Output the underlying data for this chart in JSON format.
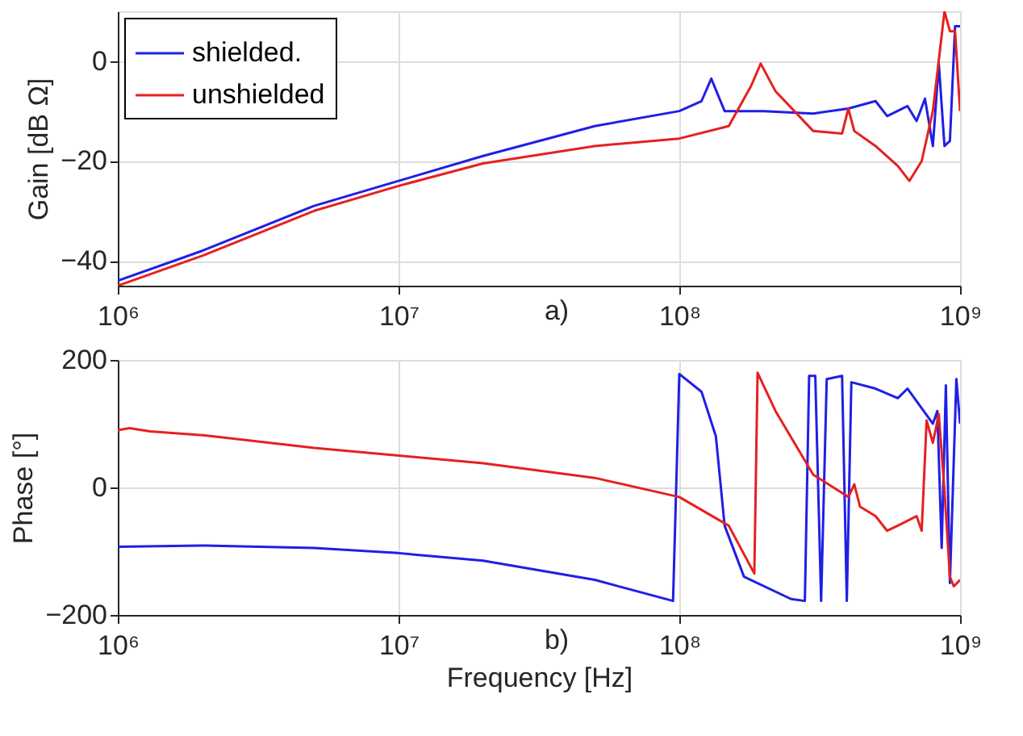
{
  "chart_data": [
    {
      "type": "line",
      "ylabel": "Gain [dB Ω]",
      "annotations": [
        "a)"
      ],
      "log": "x",
      "grid": true,
      "legend": "top left",
      "line_style": "solid",
      "marker": "none",
      "xlim": [
        1000000,
        1000000000
      ],
      "xticks": [
        {
          "value": 1000000,
          "label": "10⁶"
        },
        {
          "value": 10000000,
          "label": "10⁷"
        },
        {
          "value": 100000000,
          "label": "10⁸"
        },
        {
          "value": 1000000000,
          "label": "10⁹"
        }
      ],
      "ylim": [
        -45,
        10
      ],
      "yticks": [
        -40,
        -20,
        0
      ],
      "series": [
        {
          "name": "shielded.",
          "color": "#1f1fe6",
          "x": [
            1000000,
            2000000,
            5000000,
            10000000,
            20000000,
            50000000,
            100000000,
            120000000,
            130000000,
            145000000,
            200000000,
            300000000,
            400000000,
            500000000,
            550000000,
            650000000,
            700000000,
            750000000,
            800000000,
            840000000,
            880000000,
            920000000,
            960000000,
            1000000000
          ],
          "values": [
            -44,
            -38,
            -29,
            -24,
            -19,
            -13,
            -10,
            -8,
            -3.5,
            -10,
            -10,
            -10.5,
            -9.5,
            -8,
            -11,
            -9,
            -12,
            -7.5,
            -17,
            -0.5,
            -17,
            -16,
            7,
            7
          ]
        },
        {
          "name": "unshielded",
          "color": "#e62020",
          "x": [
            1000000,
            2000000,
            5000000,
            10000000,
            20000000,
            50000000,
            100000000,
            150000000,
            180000000,
            195000000,
            220000000,
            300000000,
            380000000,
            400000000,
            420000000,
            500000000,
            600000000,
            660000000,
            730000000,
            800000000,
            880000000,
            920000000,
            960000000,
            1000000000
          ],
          "values": [
            -45,
            -39,
            -30,
            -25,
            -20.5,
            -17,
            -15.5,
            -13,
            -5,
            -0.5,
            -6,
            -14,
            -14.5,
            -9.5,
            -14,
            -17,
            -21,
            -24,
            -20,
            -10,
            10,
            6,
            6,
            -10
          ]
        }
      ]
    },
    {
      "type": "line",
      "xlabel": "Frequency [Hz]",
      "ylabel": "Phase [°]",
      "annotations": [
        "b)"
      ],
      "log": "x",
      "grid": true,
      "legend": "top left",
      "line_style": "solid",
      "marker": "none",
      "xlim": [
        1000000,
        1000000000
      ],
      "xticks": [
        {
          "value": 1000000,
          "label": "10⁶"
        },
        {
          "value": 10000000,
          "label": "10⁷"
        },
        {
          "value": 100000000,
          "label": "10⁸"
        },
        {
          "value": 1000000000,
          "label": "10⁹"
        }
      ],
      "ylim": [
        -200,
        200
      ],
      "yticks": [
        -200,
        0,
        200
      ],
      "series": [
        {
          "name": "shielded.",
          "color": "#1f1fe6",
          "x": [
            1000000,
            2000000,
            5000000,
            10000000,
            20000000,
            50000000,
            95000000,
            100000000,
            120000000,
            135000000,
            145000000,
            170000000,
            250000000,
            280000000,
            290000000,
            305000000,
            320000000,
            335000000,
            380000000,
            395000000,
            410000000,
            500000000,
            600000000,
            650000000,
            800000000,
            830000000,
            860000000,
            890000000,
            920000000,
            970000000,
            1000000000
          ],
          "values": [
            -93,
            -91,
            -95,
            -103,
            -115,
            -145,
            -178,
            178,
            150,
            80,
            -60,
            -140,
            -175,
            -178,
            175,
            175,
            -178,
            170,
            175,
            -178,
            165,
            155,
            140,
            155,
            100,
            120,
            -95,
            160,
            -150,
            170,
            100
          ]
        },
        {
          "name": "unshielded",
          "color": "#e62020",
          "x": [
            1000000,
            1100000,
            1300000,
            2000000,
            5000000,
            10000000,
            20000000,
            50000000,
            100000000,
            150000000,
            185000000,
            190000000,
            220000000,
            300000000,
            400000000,
            420000000,
            440000000,
            500000000,
            550000000,
            600000000,
            700000000,
            730000000,
            760000000,
            800000000,
            840000000,
            880000000,
            920000000,
            950000000,
            1000000000
          ],
          "values": [
            90,
            93,
            88,
            82,
            62,
            50,
            38,
            15,
            -15,
            -60,
            -135,
            180,
            120,
            20,
            -15,
            5,
            -30,
            -45,
            -68,
            -60,
            -45,
            -68,
            105,
            70,
            115,
            -5,
            -140,
            -155,
            -145
          ]
        }
      ]
    }
  ]
}
